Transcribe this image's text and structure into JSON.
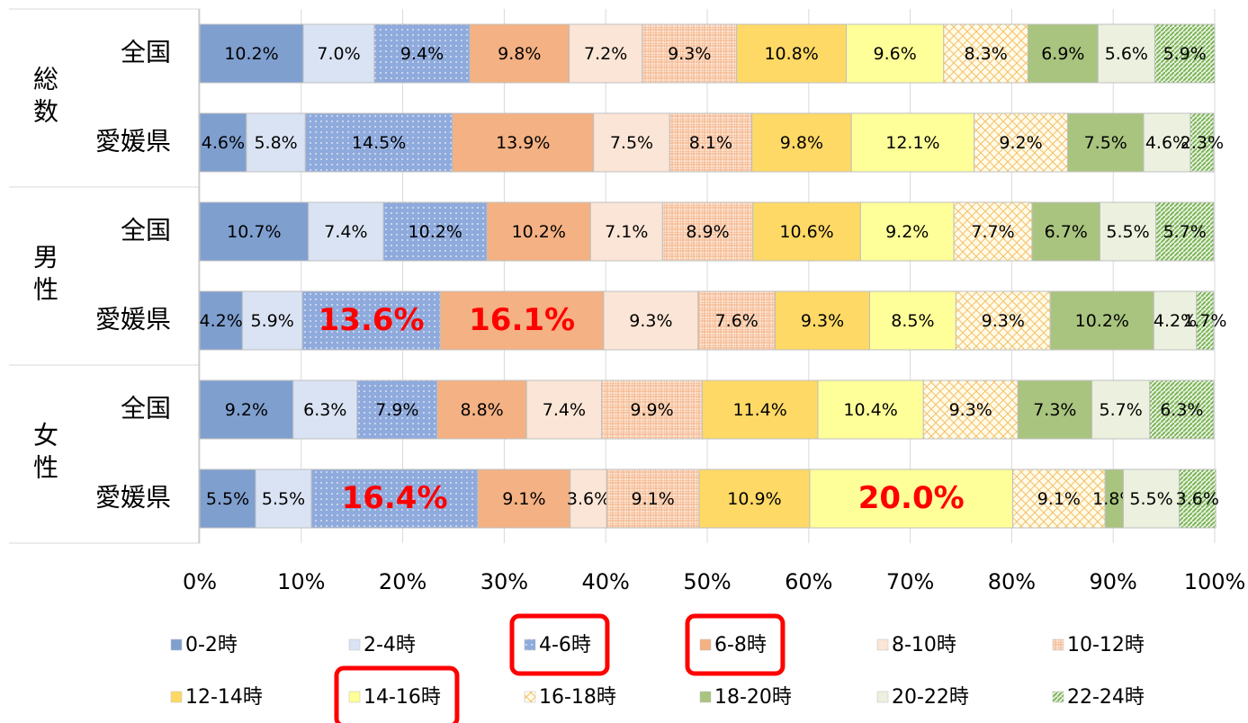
{
  "chart_data": {
    "type": "stacked-barh",
    "category_groups": [
      "総数",
      "男性",
      "女性"
    ],
    "categories": [
      "全国",
      "愛媛県",
      "全国",
      "愛媛県",
      "全国",
      "愛媛県"
    ],
    "xlim": [
      0,
      100
    ],
    "xticks": [
      {
        "value": 0,
        "label": "0%"
      },
      {
        "value": 10,
        "label": "10%"
      },
      {
        "value": 20,
        "label": "20%"
      },
      {
        "value": 30,
        "label": "30%"
      },
      {
        "value": 40,
        "label": "40%"
      },
      {
        "value": 50,
        "label": "50%"
      },
      {
        "value": 60,
        "label": "60%"
      },
      {
        "value": 70,
        "label": "70%"
      },
      {
        "value": 80,
        "label": "80%"
      },
      {
        "value": 90,
        "label": "90%"
      },
      {
        "value": 100,
        "label": "100%"
      }
    ],
    "grid": true,
    "emphasis_color": "#ff0000",
    "series": [
      {
        "name": "0-2時",
        "color": "#7f9fcf",
        "values": [
          10.2,
          4.6,
          10.7,
          4.2,
          9.2,
          5.5
        ],
        "value_labels": [
          "10.2%",
          "4.6%",
          "10.7%",
          "4.2%",
          "9.2%",
          "5.5%"
        ]
      },
      {
        "name": "2-4時",
        "color": "#dae3f3",
        "values": [
          7.0,
          5.8,
          7.4,
          5.9,
          6.3,
          5.5
        ],
        "value_labels": [
          "7.0%",
          "5.8%",
          "7.4%",
          "5.9%",
          "6.3%",
          "5.5%"
        ]
      },
      {
        "name": "4-6時",
        "color": "#8faadc",
        "pattern": "dots",
        "highlight": true,
        "emphasized": [
          3,
          5
        ],
        "values": [
          9.4,
          14.5,
          10.2,
          13.6,
          7.9,
          16.4
        ],
        "value_labels": [
          "9.4%",
          "14.5%",
          "10.2%",
          "13.6%",
          "7.9%",
          "16.4%"
        ]
      },
      {
        "name": "6-8時",
        "color": "#f4b183",
        "highlight": true,
        "emphasized": [
          3
        ],
        "values": [
          9.8,
          13.9,
          10.2,
          16.1,
          8.8,
          9.1
        ],
        "value_labels": [
          "9.8%",
          "13.9%",
          "10.2%",
          "16.1%",
          "8.8%",
          "9.1%"
        ]
      },
      {
        "name": "8-10時",
        "color": "#fbe5d6",
        "values": [
          7.2,
          7.5,
          7.1,
          9.3,
          7.4,
          3.6
        ],
        "value_labels": [
          "7.2%",
          "7.5%",
          "7.1%",
          "9.3%",
          "7.4%",
          "3.6%"
        ]
      },
      {
        "name": "10-12時",
        "color": "#f8cbad",
        "pattern": "grid",
        "values": [
          9.3,
          8.1,
          8.9,
          7.6,
          9.9,
          9.1
        ],
        "value_labels": [
          "9.3%",
          "8.1%",
          "8.9%",
          "7.6%",
          "9.9%",
          "9.1%"
        ]
      },
      {
        "name": "12-14時",
        "color": "#ffd966",
        "values": [
          10.8,
          9.8,
          10.6,
          9.3,
          11.4,
          10.9
        ],
        "value_labels": [
          "10.8%",
          "9.8%",
          "10.6%",
          "9.3%",
          "11.4%",
          "10.9%"
        ]
      },
      {
        "name": "14-16時",
        "color": "#ffff99",
        "highlight": true,
        "emphasized": [
          5
        ],
        "values": [
          9.6,
          12.1,
          9.2,
          8.5,
          10.4,
          20.0
        ],
        "value_labels": [
          "9.6%",
          "12.1%",
          "9.2%",
          "8.5%",
          "10.4%",
          "20.0%"
        ]
      },
      {
        "name": "16-18時",
        "color": "#fff8e0",
        "pattern": "diamond",
        "values": [
          8.3,
          9.2,
          7.7,
          9.3,
          9.3,
          9.1
        ],
        "value_labels": [
          "8.3%",
          "9.2%",
          "7.7%",
          "9.3%",
          "9.3%",
          "9.1%"
        ]
      },
      {
        "name": "18-20時",
        "color": "#a9c47f",
        "values": [
          6.9,
          7.5,
          6.7,
          10.2,
          7.3,
          1.8
        ],
        "value_labels": [
          "6.9%",
          "7.5%",
          "6.7%",
          "10.2%",
          "7.3%",
          "1.8%"
        ]
      },
      {
        "name": "20-22時",
        "color": "#ebf1de",
        "values": [
          5.6,
          4.6,
          5.5,
          4.2,
          5.7,
          5.5
        ],
        "value_labels": [
          "5.6%",
          "4.6%",
          "5.5%",
          "4.2%",
          "5.7%",
          "5.5%"
        ]
      },
      {
        "name": "22-24時",
        "color": "#70ad47",
        "pattern": "diagonal",
        "values": [
          5.9,
          2.3,
          5.7,
          1.7,
          6.3,
          3.6
        ],
        "value_labels": [
          "5.9%",
          "2.3%",
          "5.7%",
          "1.7%",
          "6.3%",
          "3.6%"
        ]
      }
    ]
  }
}
